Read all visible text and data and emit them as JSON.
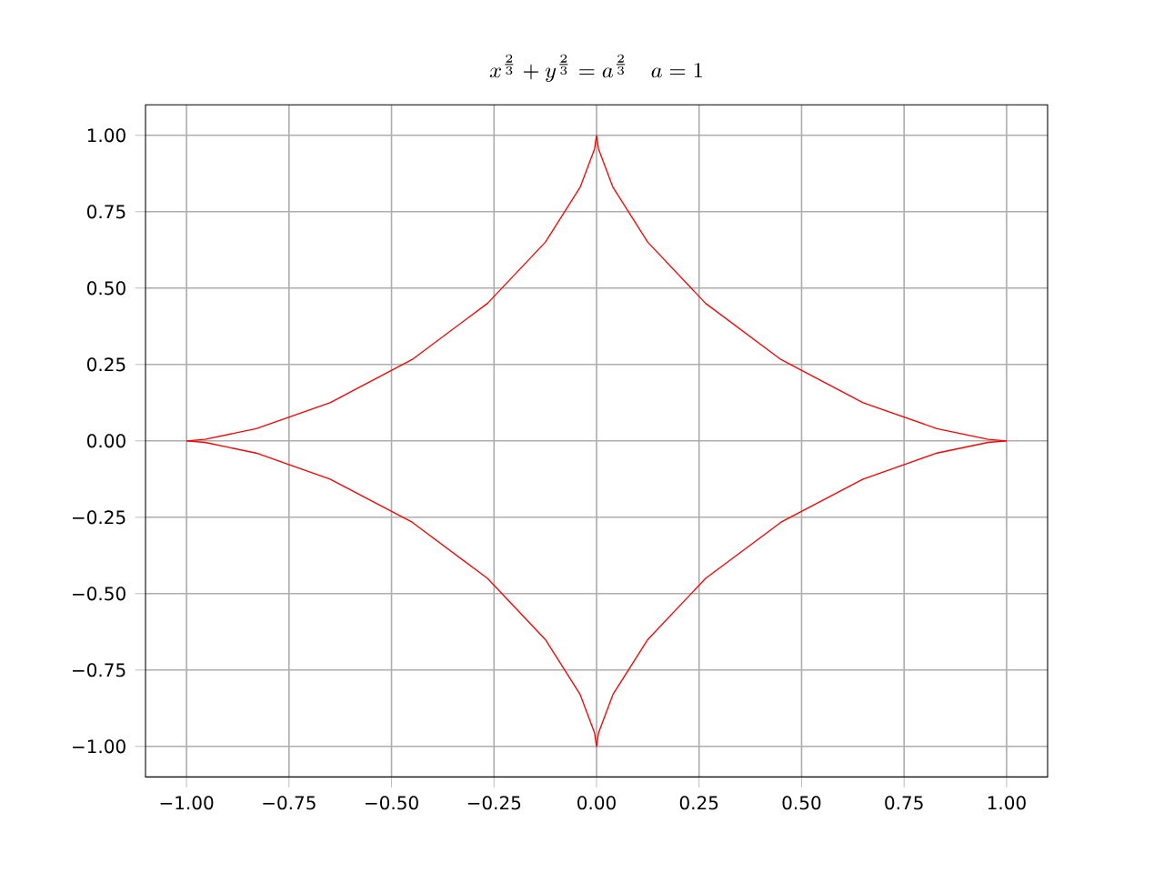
{
  "chart_data": {
    "type": "line",
    "title": "x^{\\frac{2}{3}}+y^{\\frac{2}{3}}=a^{\\frac{2}{3}}\\quad a=1",
    "series": [
      {
        "color": "#ff0000",
        "x": [
          -1,
          -0.955,
          -0.83,
          -0.65,
          -0.45,
          -0.266,
          -0.125,
          -0.04,
          -0.005,
          0,
          0.005,
          0.04,
          0.125,
          0.266,
          0.45,
          0.65,
          0.83,
          0.955,
          1
        ],
        "values": [
          0,
          0.005,
          0.04,
          0.125,
          0.266,
          0.45,
          0.65,
          0.83,
          0.955,
          1,
          0.955,
          0.83,
          0.65,
          0.45,
          0.266,
          0.125,
          0.04,
          0.005,
          0
        ]
      },
      {
        "color": "#ff0000",
        "x": [
          -1,
          -0.955,
          -0.83,
          -0.65,
          -0.45,
          -0.266,
          -0.125,
          -0.04,
          -0.005,
          0,
          0.005,
          0.04,
          0.125,
          0.266,
          0.45,
          0.65,
          0.83,
          0.955,
          1
        ],
        "values": [
          0,
          -0.005,
          -0.04,
          -0.125,
          -0.266,
          -0.45,
          -0.65,
          -0.83,
          -0.955,
          -1,
          -0.955,
          -0.83,
          -0.65,
          -0.45,
          -0.266,
          -0.125,
          -0.04,
          -0.005,
          0
        ]
      }
    ],
    "xlim": [
      -1.1,
      1.1
    ],
    "ylim": [
      -1.1,
      1.1
    ],
    "xticks": [
      {
        "value": -1,
        "label": "−1.00"
      },
      {
        "value": -0.75,
        "label": "−0.75"
      },
      {
        "value": -0.5,
        "label": "−0.50"
      },
      {
        "value": -0.25,
        "label": "−0.25"
      },
      {
        "value": 0,
        "label": "0.00"
      },
      {
        "value": 0.25,
        "label": "0.25"
      },
      {
        "value": 0.5,
        "label": "0.50"
      },
      {
        "value": 0.75,
        "label": "0.75"
      },
      {
        "value": 1,
        "label": "1.00"
      }
    ],
    "yticks": [
      {
        "value": -1,
        "label": "−1.00"
      },
      {
        "value": -0.75,
        "label": "−0.75"
      },
      {
        "value": -0.5,
        "label": "−0.50"
      },
      {
        "value": -0.25,
        "label": "−0.25"
      },
      {
        "value": 0,
        "label": "0.00"
      },
      {
        "value": 0.25,
        "label": "0.25"
      },
      {
        "value": 0.5,
        "label": "0.50"
      },
      {
        "value": 0.75,
        "label": "0.75"
      },
      {
        "value": 1,
        "label": "1.00"
      }
    ],
    "grid": true,
    "marker": "none",
    "line_style": "solid"
  }
}
